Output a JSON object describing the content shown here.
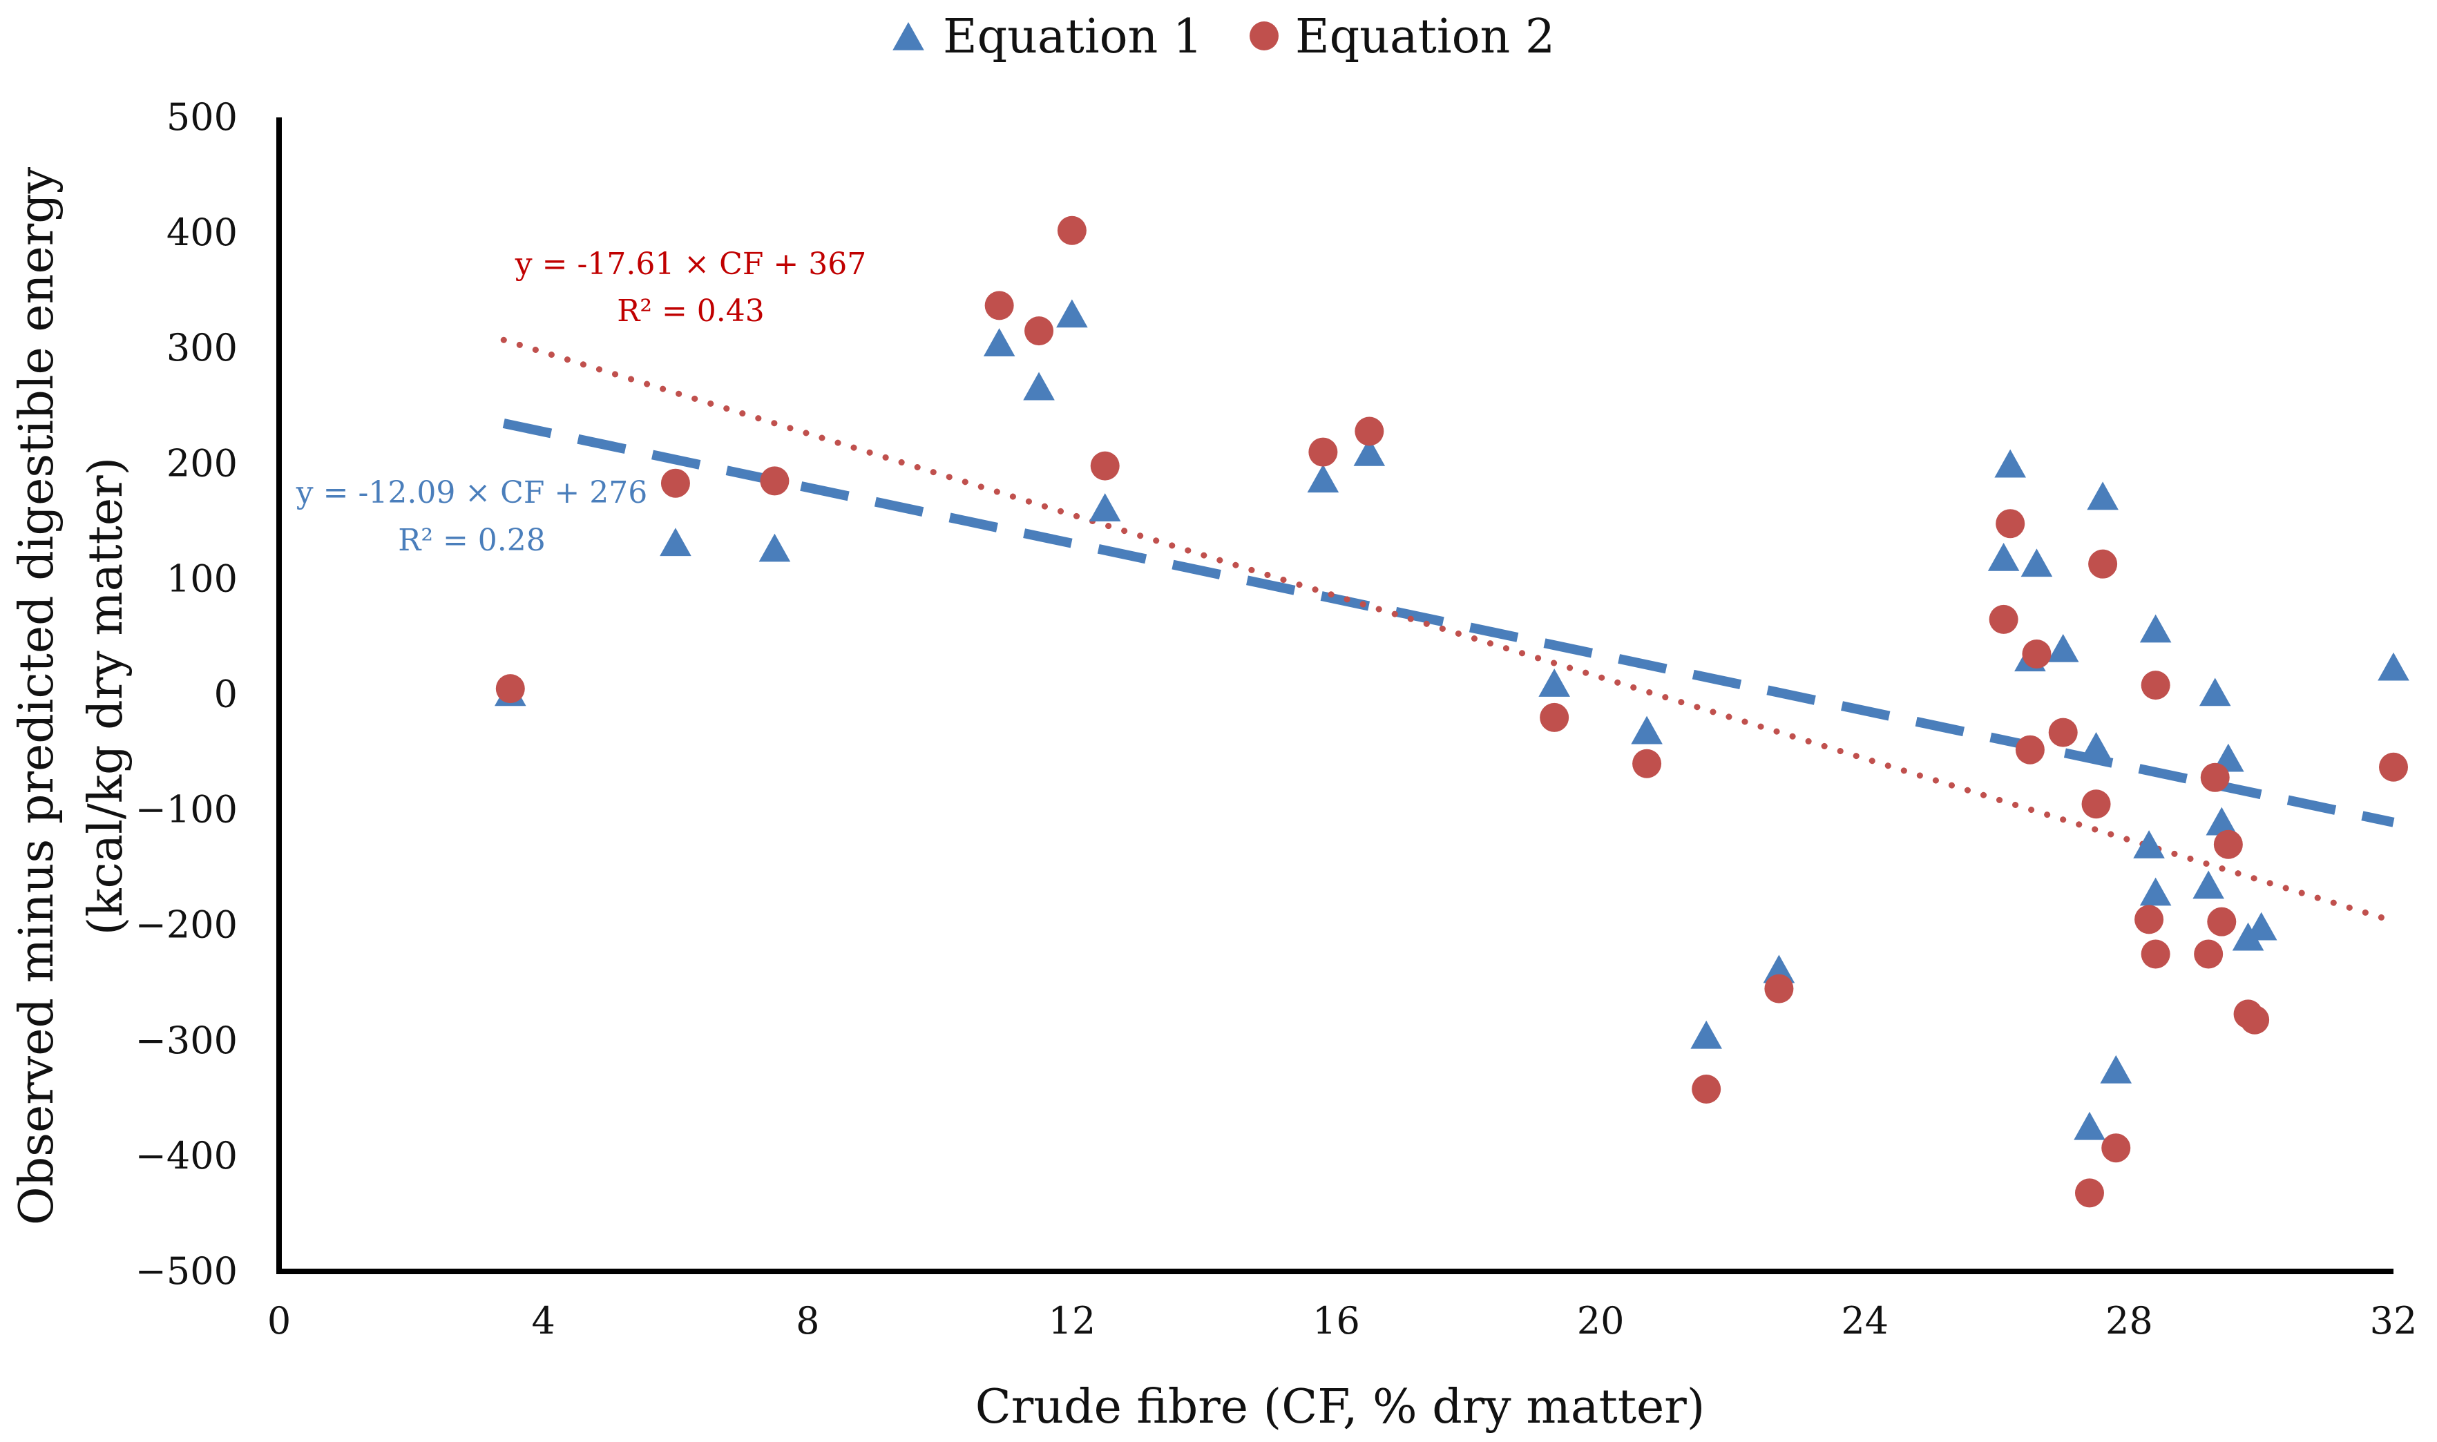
{
  "chart_data": {
    "type": "scatter",
    "title": "",
    "xlabel": "Crude fibre (CF, % dry matter)",
    "ylabel_lines": [
      "Observed minus predicted digestible energy",
      "(kcal/kg dry matter)"
    ],
    "xlim": [
      0,
      32
    ],
    "ylim": [
      -500,
      500
    ],
    "xticks": [
      0,
      4,
      8,
      12,
      16,
      20,
      24,
      28,
      32
    ],
    "yticks": [
      500,
      400,
      300,
      200,
      100,
      0,
      -100,
      -200,
      -300,
      -400,
      -500
    ],
    "ytick_labels": [
      "500",
      "400",
      "300",
      "200",
      "100",
      "0",
      "−100",
      "−200",
      "−300",
      "−400",
      "−500"
    ],
    "legend_position": "top-center",
    "series": [
      {
        "name": "Equation 1",
        "marker": "triangle",
        "color": "#4a7ebb",
        "points": [
          [
            3.5,
            0
          ],
          [
            6.0,
            130
          ],
          [
            7.5,
            125
          ],
          [
            10.9,
            303
          ],
          [
            11.5,
            265
          ],
          [
            12.0,
            328
          ],
          [
            12.5,
            160
          ],
          [
            15.8,
            185
          ],
          [
            16.5,
            208
          ],
          [
            19.3,
            8
          ],
          [
            20.7,
            -33
          ],
          [
            21.6,
            -297
          ],
          [
            22.7,
            -240
          ],
          [
            26.1,
            117
          ],
          [
            26.2,
            198
          ],
          [
            26.5,
            30
          ],
          [
            26.6,
            112
          ],
          [
            27.0,
            38
          ],
          [
            27.4,
            -376
          ],
          [
            27.5,
            -47
          ],
          [
            27.6,
            170
          ],
          [
            27.8,
            -327
          ],
          [
            28.3,
            -132
          ],
          [
            28.4,
            -173
          ],
          [
            28.4,
            55
          ],
          [
            29.2,
            -167
          ],
          [
            29.3,
            0
          ],
          [
            29.5,
            -57
          ],
          [
            29.4,
            -112
          ],
          [
            29.8,
            -212
          ],
          [
            30.0,
            -203
          ],
          [
            32.0,
            22
          ]
        ]
      },
      {
        "name": "Equation 2",
        "marker": "circle",
        "color": "#c0504d",
        "points": [
          [
            3.5,
            5
          ],
          [
            6.0,
            183
          ],
          [
            7.5,
            185
          ],
          [
            10.9,
            337
          ],
          [
            11.5,
            315
          ],
          [
            12.0,
            402
          ],
          [
            12.5,
            198
          ],
          [
            15.8,
            210
          ],
          [
            16.5,
            228
          ],
          [
            19.3,
            -20
          ],
          [
            20.7,
            -60
          ],
          [
            21.6,
            -342
          ],
          [
            22.7,
            -255
          ],
          [
            26.1,
            65
          ],
          [
            26.2,
            148
          ],
          [
            26.5,
            -48
          ],
          [
            26.6,
            35
          ],
          [
            27.0,
            -33
          ],
          [
            27.4,
            -432
          ],
          [
            27.5,
            -95
          ],
          [
            27.6,
            113
          ],
          [
            27.8,
            -393
          ],
          [
            28.3,
            -195
          ],
          [
            28.4,
            -225
          ],
          [
            28.4,
            8
          ],
          [
            29.2,
            -225
          ],
          [
            29.3,
            -72
          ],
          [
            29.4,
            -197
          ],
          [
            29.5,
            -130
          ],
          [
            29.8,
            -277
          ],
          [
            29.9,
            -282
          ],
          [
            32.0,
            -63
          ]
        ]
      }
    ],
    "trendlines": [
      {
        "series": "Equation 1",
        "slope": -12.09,
        "intercept": 276,
        "x_range": [
          3.4,
          32.0
        ],
        "style": "dashed",
        "color": "#4a7ebb",
        "equation": "y = -12.09 × CF + 276",
        "r2": "R² = 0.28"
      },
      {
        "series": "Equation 2",
        "slope": -17.61,
        "intercept": 367,
        "x_range": [
          3.4,
          32.0
        ],
        "style": "dotted",
        "color": "#c0504d",
        "label_color": "#c00000",
        "equation": "y = -17.61 × CF + 367",
        "r2": "R² = 0.43"
      }
    ]
  }
}
